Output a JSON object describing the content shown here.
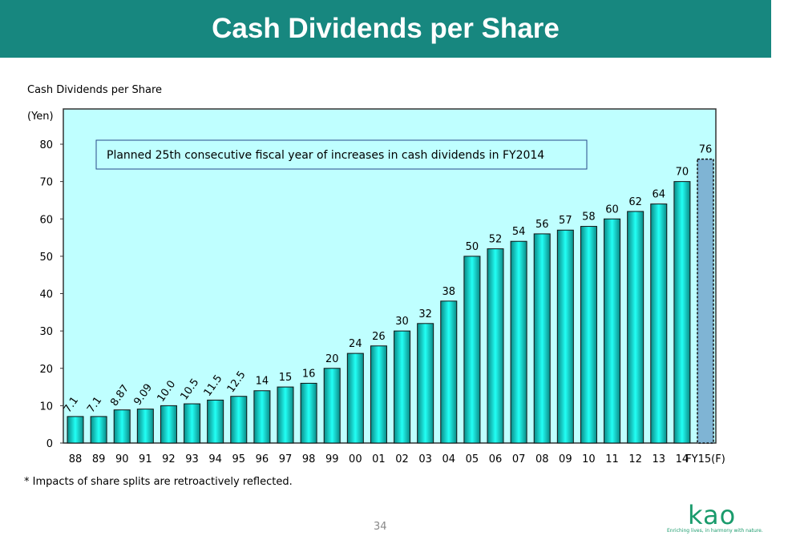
{
  "header": {
    "title": "Cash Dividends per Share"
  },
  "chart_data": {
    "type": "bar",
    "title": "Cash Dividends per Share",
    "ylabel": "(Yen)",
    "ylim": [
      0,
      80
    ],
    "yticks": [
      0,
      10,
      20,
      30,
      40,
      50,
      60,
      70,
      80
    ],
    "categories": [
      "88",
      "89",
      "90",
      "91",
      "92",
      "93",
      "94",
      "95",
      "96",
      "97",
      "98",
      "99",
      "00",
      "01",
      "02",
      "03",
      "04",
      "05",
      "06",
      "07",
      "08",
      "09",
      "10",
      "11",
      "12",
      "13",
      "14",
      "FY15(F)"
    ],
    "values": [
      7.1,
      7.1,
      8.87,
      9.09,
      10.0,
      10.5,
      11.5,
      12.5,
      14,
      15,
      16,
      20,
      24,
      26,
      30,
      32,
      38,
      50,
      52,
      54,
      56,
      57,
      58,
      60,
      62,
      64,
      70,
      76
    ],
    "value_labels": [
      "7.1",
      "7.1",
      "8.87",
      "9.09",
      "10.0",
      "10.5",
      "11.5",
      "12.5",
      "14",
      "15",
      "16",
      "20",
      "24",
      "26",
      "30",
      "32",
      "38",
      "50",
      "52",
      "54",
      "56",
      "57",
      "58",
      "60",
      "62",
      "64",
      "70",
      "76"
    ],
    "forecast_index": 27,
    "annotation": "Planned 25th consecutive fiscal year of increases in cash dividends in FY2014",
    "colors": {
      "bar": "#1ee8e0",
      "forecast": "#7fb4d4",
      "plot_bg": "#bfffff"
    },
    "grid": false
  },
  "footnote": "* Impacts of share splits are retroactively reflected.",
  "page_number": "34",
  "logo": {
    "text": "Kao",
    "tagline": "Enriching lives, in harmony with nature."
  }
}
